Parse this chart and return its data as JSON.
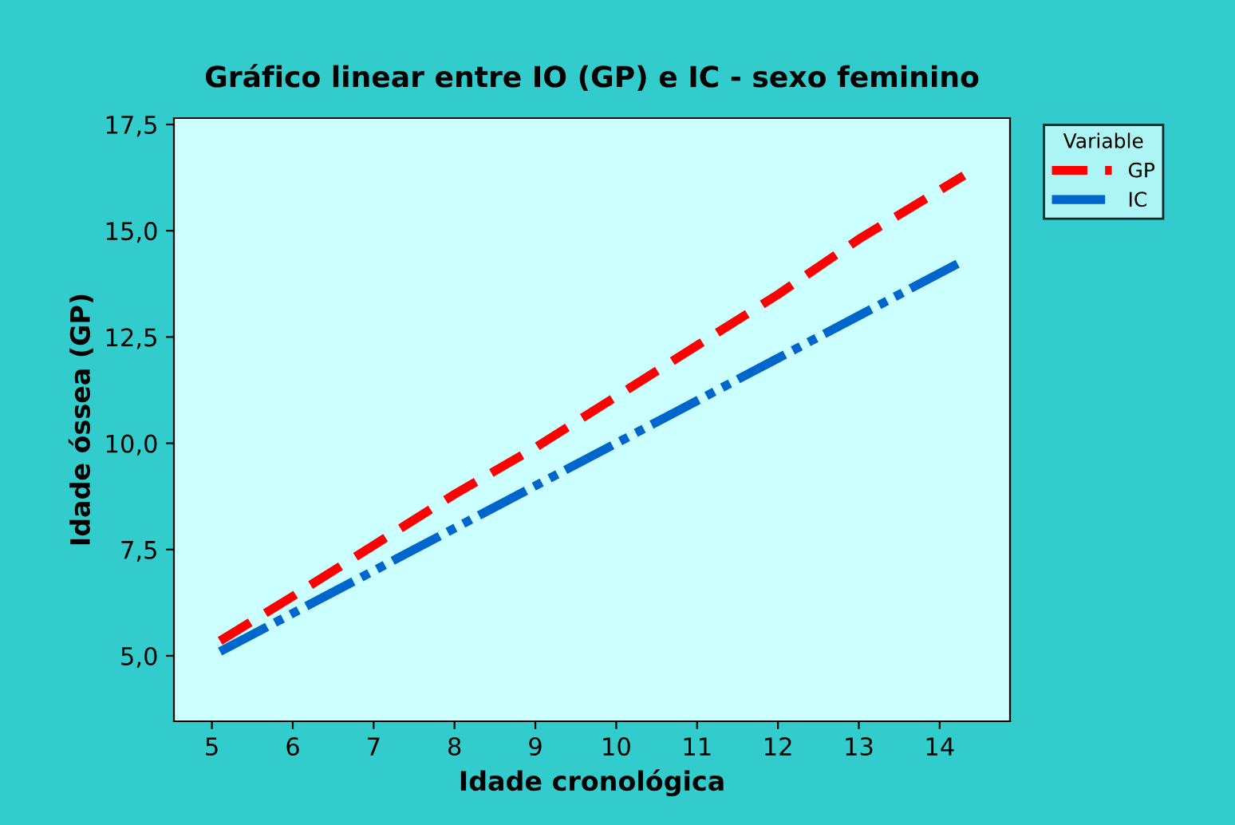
{
  "chart_data": {
    "type": "line",
    "title": "Gráfico linear entre IO (GP) e IC - sexo feminino",
    "xlabel": "Idade cronológica",
    "ylabel": "Idade óssea (GP)",
    "legend_title": "Variable",
    "legend": "right",
    "grid": false,
    "marker": "none",
    "xlim": [
      4.53,
      14.87
    ],
    "xticks": [
      5,
      6,
      7,
      8,
      9,
      10,
      11,
      12,
      13,
      14
    ],
    "ylim": [
      3.46,
      17.65
    ],
    "yticks": [
      {
        "value": 5,
        "label": "5,0"
      },
      {
        "value": 7.5,
        "label": "7,5"
      },
      {
        "value": 10,
        "label": "10,0"
      },
      {
        "value": 12.5,
        "label": "12,5"
      },
      {
        "value": 15,
        "label": "15,0"
      },
      {
        "value": 17.5,
        "label": "17,5"
      }
    ],
    "series": [
      {
        "name": "GP",
        "color": "#ff0000",
        "line_style": "dashed",
        "x": [
          5.1,
          6,
          7,
          8,
          9,
          10,
          11,
          12,
          13,
          14.3
        ],
        "values": [
          5.35,
          6.4,
          7.6,
          8.8,
          9.9,
          11.1,
          12.3,
          13.5,
          14.8,
          16.3
        ]
      },
      {
        "name": "IC",
        "color": "#0066cc",
        "line_style": "dashdot",
        "x": [
          5.1,
          6,
          7,
          8,
          9,
          10,
          11,
          12,
          13,
          14.3
        ],
        "values": [
          5.1,
          6,
          7,
          8,
          9,
          10,
          11,
          12,
          13,
          14.3
        ]
      }
    ]
  }
}
